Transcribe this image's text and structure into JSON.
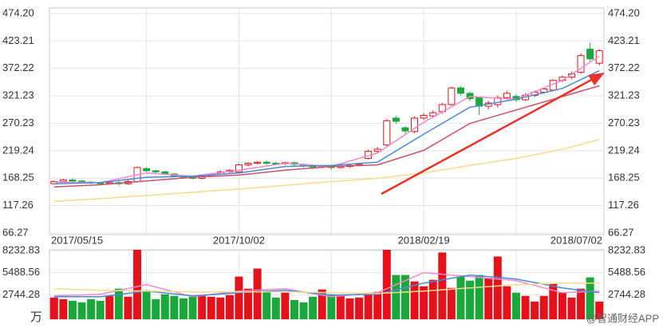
{
  "chart_data": {
    "type": "candlestick",
    "up_color": "#e5121b",
    "down_color": "#1aa83a",
    "grid": true,
    "ylim": [
      66.27,
      474.2
    ],
    "yticks": [
      {
        "value": 474.2,
        "label": "474.20"
      },
      423.21,
      372.22,
      321.23,
      270.23,
      219.24,
      168.25,
      117.26,
      66.27
    ],
    "xlim": [
      -0.5,
      59.5
    ],
    "xticks": [
      {
        "value": 0,
        "label": "2017/05/15"
      },
      {
        "value": 20,
        "label": "2017/10/02"
      },
      {
        "value": 40,
        "label": "2018/02/19"
      },
      {
        "value": 59,
        "label": "2018/07/02"
      }
    ],
    "xgrid": [
      10,
      20,
      30,
      40,
      50
    ],
    "open": [
      158,
      162,
      165,
      163,
      161,
      160,
      158,
      160,
      158,
      162,
      186,
      182,
      180,
      176,
      172,
      170,
      168,
      172,
      176,
      180,
      180,
      193,
      196,
      198,
      196,
      195,
      197,
      194,
      192,
      189,
      191,
      188,
      190,
      192,
      205,
      218,
      230,
      280,
      262,
      255,
      280,
      284,
      292,
      305,
      336,
      326,
      318,
      302,
      305,
      318,
      320,
      314,
      322,
      328,
      332,
      350,
      356,
      365,
      408,
      382
    ],
    "close": [
      162,
      165,
      163,
      161,
      160,
      158,
      160,
      158,
      162,
      188,
      182,
      180,
      176,
      172,
      170,
      168,
      172,
      176,
      180,
      183,
      193,
      196,
      198,
      196,
      195,
      197,
      194,
      192,
      189,
      191,
      188,
      190,
      192,
      194,
      218,
      222,
      275,
      274,
      256,
      280,
      285,
      290,
      305,
      336,
      326,
      316,
      302,
      308,
      318,
      326,
      314,
      322,
      328,
      334,
      350,
      356,
      362,
      396,
      390,
      405
    ],
    "high": [
      164,
      167,
      168,
      165,
      163,
      162,
      162,
      163,
      165,
      190,
      188,
      184,
      182,
      178,
      174,
      172,
      174,
      178,
      183,
      185,
      195,
      198,
      200,
      201,
      199,
      199,
      199,
      196,
      194,
      193,
      193,
      192,
      194,
      197,
      221,
      226,
      278,
      284,
      265,
      283,
      289,
      294,
      308,
      338,
      339,
      329,
      320,
      312,
      322,
      330,
      324,
      326,
      331,
      337,
      352,
      359,
      366,
      400,
      420,
      408
    ],
    "low": [
      156,
      160,
      161,
      159,
      157,
      155,
      156,
      154,
      156,
      160,
      180,
      177,
      174,
      170,
      167,
      166,
      166,
      170,
      174,
      178,
      178,
      190,
      194,
      193,
      192,
      193,
      191,
      188,
      185,
      186,
      184,
      186,
      187,
      190,
      203,
      215,
      228,
      270,
      250,
      252,
      276,
      281,
      288,
      303,
      322,
      312,
      286,
      296,
      300,
      314,
      310,
      312,
      319,
      325,
      330,
      347,
      352,
      362,
      386,
      378
    ],
    "overlays": [
      {
        "color": "#f08ad0",
        "x": [
          0,
          5,
          10,
          15,
          20,
          25,
          30,
          35,
          40,
          45,
          50,
          55,
          59
        ],
        "values": [
          161,
          160,
          178,
          172,
          183,
          196,
          190,
          215,
          272,
          320,
          315,
          350,
          395
        ]
      },
      {
        "color": "#4a8ad8",
        "x": [
          0,
          5,
          10,
          15,
          20,
          25,
          30,
          35,
          40,
          45,
          50,
          55,
          59
        ],
        "values": [
          158,
          160,
          170,
          172,
          178,
          190,
          192,
          198,
          250,
          300,
          315,
          335,
          368
        ]
      },
      {
        "color": "#c8546a",
        "x": [
          0,
          5,
          10,
          15,
          20,
          25,
          30,
          35,
          40,
          45,
          50,
          55,
          59
        ],
        "values": [
          152,
          156,
          163,
          170,
          174,
          183,
          190,
          193,
          220,
          270,
          295,
          320,
          340
        ]
      },
      {
        "color": "#f5dc8c",
        "x": [
          0,
          5,
          10,
          15,
          20,
          25,
          30,
          35,
          40,
          45,
          50,
          55,
          59
        ],
        "values": [
          125,
          130,
          136,
          142,
          148,
          155,
          162,
          168,
          178,
          192,
          205,
          222,
          240
        ]
      }
    ],
    "volume": [
      2400,
      2200,
      2000,
      1800,
      2200,
      2000,
      2600,
      3500,
      2500,
      8400,
      3300,
      2200,
      2800,
      2600,
      2300,
      2500,
      2600,
      2500,
      2400,
      2700,
      5000,
      3500,
      6000,
      3200,
      2400,
      3000,
      2100,
      1800,
      2500,
      3400,
      2800,
      2700,
      2300,
      2400,
      3000,
      3100,
      8400,
      5200,
      5200,
      4400,
      3800,
      4600,
      8000,
      3600,
      5000,
      4500,
      5200,
      4800,
      7500,
      3800,
      3000,
      2600,
      1900,
      2600,
      4100,
      3000,
      2400,
      3500,
      4900,
      1900
    ],
    "vlim": [
      0,
      8232.83
    ],
    "vticks": [
      8232.83,
      5488.56,
      2744.28
    ],
    "volume_unit": "万",
    "volume_overlays": [
      {
        "color": "#f08ad0",
        "x": [
          0,
          5,
          10,
          15,
          20,
          25,
          30,
          35,
          40,
          45,
          50,
          55,
          59
        ],
        "values": [
          2600,
          2800,
          4000,
          2500,
          3200,
          3500,
          2500,
          3000,
          5500,
          5000,
          4500,
          3000,
          3200
        ]
      },
      {
        "color": "#4a8ad8",
        "x": [
          0,
          5,
          10,
          15,
          20,
          25,
          30,
          35,
          40,
          45,
          50,
          55,
          59
        ],
        "values": [
          2500,
          2500,
          3200,
          2600,
          3000,
          3300,
          2700,
          2800,
          4200,
          5200,
          4700,
          3600,
          3000
        ]
      },
      {
        "color": "#f5dc8c",
        "x": [
          0,
          5,
          10,
          15,
          20,
          25,
          30,
          35,
          40,
          45,
          50,
          55,
          59
        ],
        "values": [
          3500,
          3300,
          3200,
          3100,
          3100,
          3100,
          3000,
          2900,
          3200,
          3600,
          4000,
          4200,
          4200
        ]
      }
    ]
  },
  "watermark": "@智通财经APP"
}
